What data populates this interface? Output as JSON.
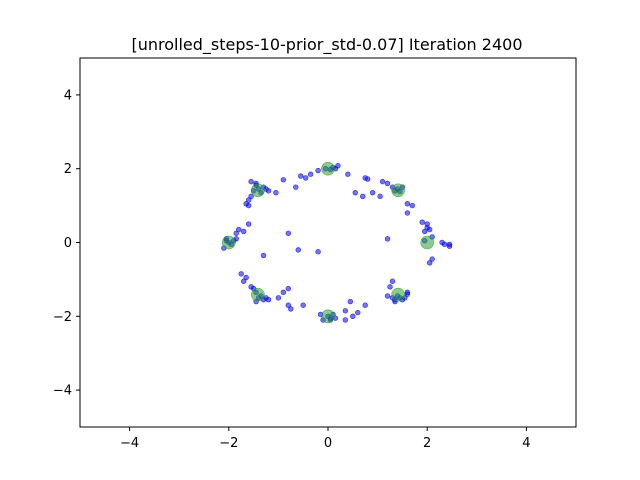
{
  "chart_data": {
    "type": "scatter",
    "title": "[unrolled_steps-10-prior_std-0.07] Iteration 2400",
    "xlabel": "",
    "ylabel": "",
    "xlim": [
      -5,
      5
    ],
    "ylim": [
      -5,
      5
    ],
    "x_ticks": [
      -4,
      -2,
      0,
      2,
      4
    ],
    "y_ticks": [
      -4,
      -2,
      0,
      2,
      4
    ],
    "x_tick_labels": [
      "−4",
      "−2",
      "0",
      "2",
      "4"
    ],
    "y_tick_labels": [
      "−4",
      "−2",
      "0",
      "2",
      "4"
    ],
    "grid": false,
    "legend": "none",
    "series": [
      {
        "color": "#0000ff",
        "opacity": 0.55,
        "marker": "circle-small",
        "points": [
          [
            -0.05,
            2.0
          ],
          [
            0.05,
            1.98
          ],
          [
            0.1,
            2.03
          ],
          [
            0.15,
            2.0
          ],
          [
            0.2,
            2.08
          ],
          [
            -0.2,
            1.95
          ],
          [
            -0.35,
            1.85
          ],
          [
            -0.45,
            1.75
          ],
          [
            -0.55,
            1.8
          ],
          [
            0.4,
            1.85
          ],
          [
            0.55,
            1.35
          ],
          [
            0.7,
            1.25
          ],
          [
            0.75,
            1.75
          ],
          [
            0.8,
            1.72
          ],
          [
            0.9,
            1.35
          ],
          [
            1.35,
            1.4
          ],
          [
            1.4,
            1.45
          ],
          [
            1.45,
            1.38
          ],
          [
            1.5,
            1.5
          ],
          [
            1.3,
            1.5
          ],
          [
            1.2,
            1.6
          ],
          [
            1.1,
            1.65
          ],
          [
            1.05,
            1.25
          ],
          [
            1.6,
            1.05
          ],
          [
            1.7,
            1.0
          ],
          [
            1.6,
            0.8
          ],
          [
            1.9,
            0.55
          ],
          [
            2.0,
            0.5
          ],
          [
            2.0,
            0.4
          ],
          [
            2.05,
            0.35
          ],
          [
            1.95,
            0.3
          ],
          [
            2.1,
            0.15
          ],
          [
            2.3,
            0.0
          ],
          [
            2.35,
            -0.05
          ],
          [
            2.45,
            -0.05
          ],
          [
            2.45,
            -0.1
          ],
          [
            2.1,
            -0.45
          ],
          [
            2.05,
            -0.55
          ],
          [
            1.95,
            0.05
          ],
          [
            1.4,
            -1.45
          ],
          [
            1.45,
            -1.5
          ],
          [
            1.5,
            -1.55
          ],
          [
            1.55,
            -1.5
          ],
          [
            1.6,
            -1.4
          ],
          [
            1.35,
            -1.55
          ],
          [
            1.3,
            -1.5
          ],
          [
            1.2,
            -1.45
          ],
          [
            1.35,
            -1.6
          ],
          [
            1.3,
            -1.05
          ],
          [
            1.2,
            0.1
          ],
          [
            1.25,
            -1.2
          ],
          [
            1.6,
            -1.35
          ],
          [
            0.0,
            -2.0
          ],
          [
            0.05,
            -2.05
          ],
          [
            0.1,
            -1.95
          ],
          [
            0.15,
            -2.05
          ],
          [
            0.05,
            -2.1
          ],
          [
            -0.1,
            -2.1
          ],
          [
            -0.15,
            -1.95
          ],
          [
            0.35,
            -2.1
          ],
          [
            0.45,
            -1.6
          ],
          [
            0.5,
            -2.0
          ],
          [
            0.6,
            -1.9
          ],
          [
            0.75,
            -1.7
          ],
          [
            0.35,
            -1.85
          ],
          [
            -0.2,
            -0.25
          ],
          [
            -0.5,
            -1.7
          ],
          [
            -0.8,
            -1.7
          ],
          [
            -0.75,
            -1.8
          ],
          [
            -0.8,
            -1.25
          ],
          [
            -0.9,
            -1.35
          ],
          [
            -1.0,
            -1.5
          ],
          [
            -1.35,
            -1.45
          ],
          [
            -1.4,
            -1.5
          ],
          [
            -1.3,
            -1.55
          ],
          [
            -1.25,
            -1.5
          ],
          [
            -1.45,
            -1.35
          ],
          [
            -1.5,
            -1.25
          ],
          [
            -1.55,
            -1.2
          ],
          [
            -1.65,
            -0.95
          ],
          [
            -1.75,
            -0.85
          ],
          [
            -1.7,
            -1.05
          ],
          [
            -1.45,
            -1.6
          ],
          [
            -1.2,
            -1.55
          ],
          [
            -1.3,
            -0.35
          ],
          [
            -2.0,
            0.0
          ],
          [
            -2.05,
            0.05
          ],
          [
            -1.95,
            -0.05
          ],
          [
            -1.9,
            0.05
          ],
          [
            -2.1,
            -0.15
          ],
          [
            -1.85,
            0.25
          ],
          [
            -1.8,
            0.35
          ],
          [
            -1.7,
            0.3
          ],
          [
            -1.6,
            0.5
          ],
          [
            -1.85,
            0.1
          ],
          [
            -2.05,
            0.1
          ],
          [
            -1.4,
            1.45
          ],
          [
            -1.35,
            1.35
          ],
          [
            -1.3,
            1.5
          ],
          [
            -1.25,
            1.45
          ],
          [
            -1.45,
            1.55
          ],
          [
            -1.5,
            1.4
          ],
          [
            -1.55,
            1.25
          ],
          [
            -1.6,
            1.15
          ],
          [
            -1.65,
            1.05
          ],
          [
            -1.6,
            1.0
          ],
          [
            -1.2,
            1.4
          ],
          [
            -1.45,
            1.6
          ],
          [
            -1.55,
            1.65
          ],
          [
            -1.05,
            1.35
          ],
          [
            -0.8,
            0.25
          ],
          [
            -0.6,
            -0.2
          ],
          [
            -0.65,
            1.5
          ],
          [
            -0.9,
            1.7
          ]
        ]
      },
      {
        "color": "#2ca02c",
        "opacity": 0.55,
        "marker": "circle-large",
        "points": [
          [
            0,
            2
          ],
          [
            1.414,
            1.414
          ],
          [
            2,
            0
          ],
          [
            1.414,
            -1.414
          ],
          [
            0,
            -2
          ],
          [
            -1.414,
            -1.414
          ],
          [
            -2,
            0
          ],
          [
            -1.414,
            1.414
          ]
        ]
      }
    ]
  }
}
